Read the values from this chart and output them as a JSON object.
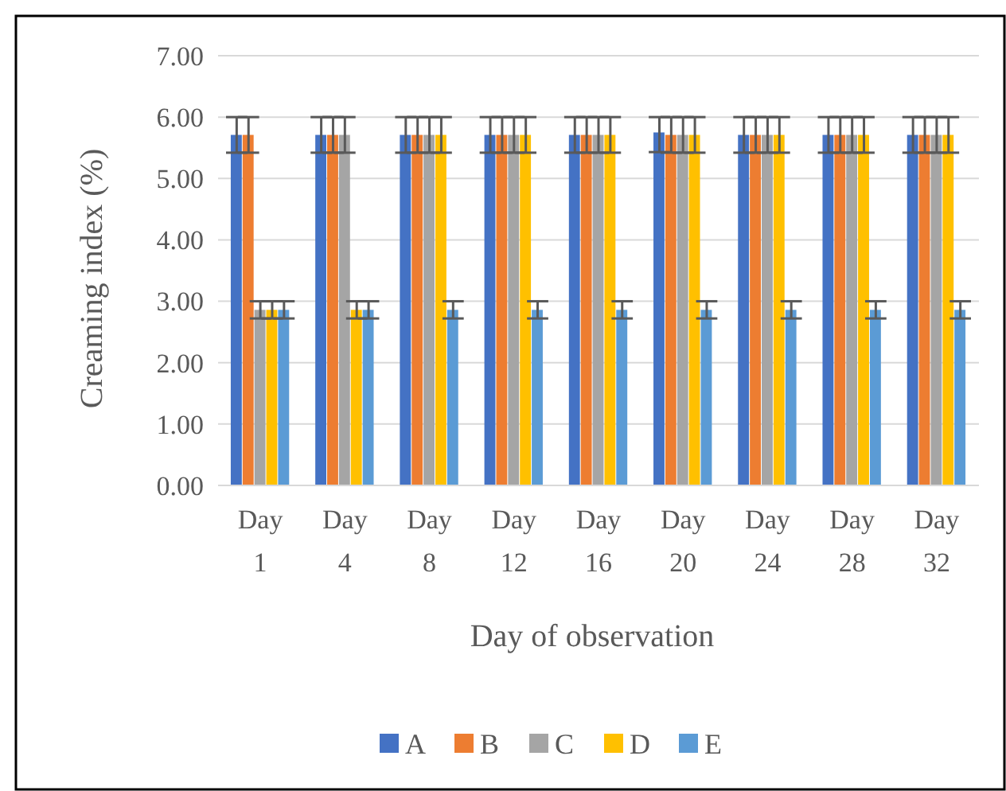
{
  "chart_data": {
    "type": "bar",
    "xlabel": "Day of observation",
    "ylabel": "Creaming index (%)",
    "categories": [
      "Day 1",
      "Day 4",
      "Day 8",
      "Day 12",
      "Day 16",
      "Day 20",
      "Day 24",
      "Day 28",
      "Day 32"
    ],
    "series": [
      {
        "name": "A",
        "color": "#4472c4",
        "values": [
          5.71,
          5.71,
          5.71,
          5.71,
          5.71,
          5.75,
          5.71,
          5.71,
          5.71
        ],
        "errors": [
          0.29,
          0.29,
          0.29,
          0.29,
          0.29,
          [
            5.43,
            6.0
          ],
          0.29,
          0.29,
          0.29
        ]
      },
      {
        "name": "B",
        "color": "#ed7d31",
        "values": [
          5.71,
          5.71,
          5.71,
          5.71,
          5.71,
          5.71,
          5.71,
          5.71,
          5.71
        ],
        "errors": [
          0.29,
          0.29,
          0.29,
          0.29,
          0.29,
          0.29,
          0.29,
          0.29,
          0.29
        ]
      },
      {
        "name": "C",
        "color": "#a5a5a5",
        "values": [
          2.86,
          5.71,
          5.71,
          5.71,
          5.71,
          5.71,
          5.71,
          5.71,
          5.71
        ],
        "errors": [
          0.14,
          0.29,
          0.29,
          0.29,
          0.29,
          0.29,
          0.29,
          0.29,
          0.29
        ]
      },
      {
        "name": "D",
        "color": "#ffc000",
        "values": [
          2.86,
          2.86,
          5.71,
          5.71,
          5.71,
          5.71,
          5.71,
          5.71,
          5.71
        ],
        "errors": [
          0.14,
          0.14,
          0.29,
          0.29,
          0.29,
          0.29,
          0.29,
          0.29,
          0.29
        ]
      },
      {
        "name": "E",
        "color": "#5b9bd5",
        "values": [
          2.86,
          2.86,
          2.86,
          2.86,
          2.86,
          2.86,
          2.86,
          2.86,
          2.86
        ],
        "errors": [
          0.14,
          0.14,
          0.14,
          0.14,
          0.14,
          0.14,
          0.14,
          0.14,
          0.14
        ]
      }
    ],
    "ylim": [
      0,
      7
    ],
    "yticks": [
      {
        "value": 0,
        "label": "0.00"
      },
      {
        "value": 1,
        "label": "1.00"
      },
      {
        "value": 2,
        "label": "2.00"
      },
      {
        "value": 3,
        "label": "3.00"
      },
      {
        "value": 4,
        "label": "4.00"
      },
      {
        "value": 5,
        "label": "5.00"
      },
      {
        "value": 6,
        "label": "6.00"
      },
      {
        "value": 7,
        "label": "7.00"
      }
    ],
    "grid": "y",
    "legend": "bottom"
  }
}
